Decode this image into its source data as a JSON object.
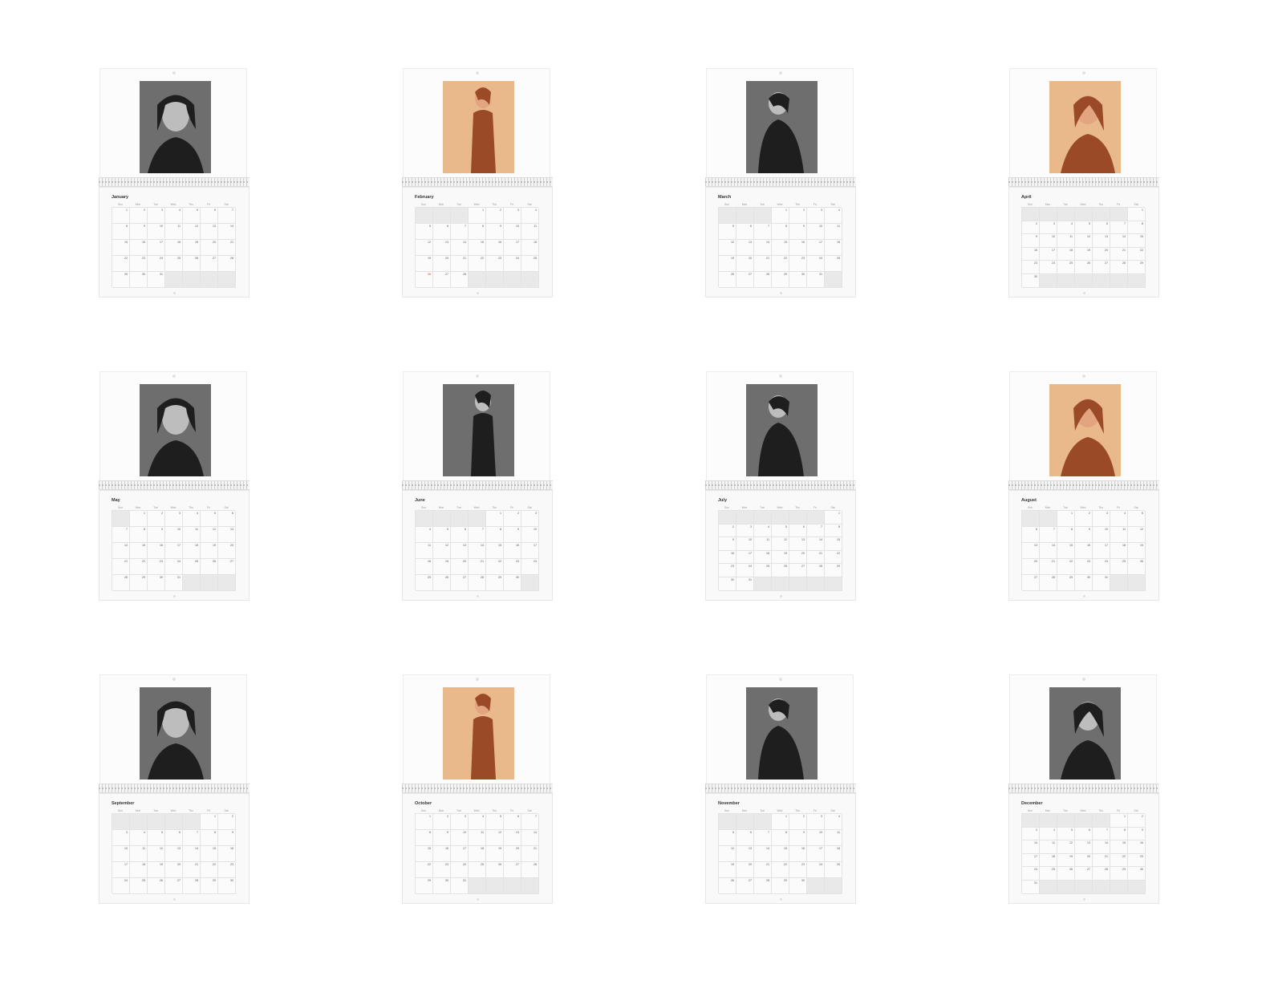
{
  "months": [
    {
      "name": "January",
      "start": 0,
      "days": 31,
      "photo": "bw",
      "red": []
    },
    {
      "name": "February",
      "start": 3,
      "days": 28,
      "photo": "warm",
      "red": [
        26
      ]
    },
    {
      "name": "March",
      "start": 3,
      "days": 31,
      "photo": "bw",
      "red": []
    },
    {
      "name": "April",
      "start": 6,
      "days": 30,
      "photo": "warm",
      "red": []
    },
    {
      "name": "May",
      "start": 1,
      "days": 31,
      "photo": "bw",
      "red": []
    },
    {
      "name": "June",
      "start": 4,
      "days": 30,
      "photo": "bw",
      "red": []
    },
    {
      "name": "July",
      "start": 6,
      "days": 31,
      "photo": "bw",
      "red": []
    },
    {
      "name": "August",
      "start": 2,
      "days": 31,
      "photo": "warm",
      "red": []
    },
    {
      "name": "September",
      "start": 5,
      "days": 30,
      "photo": "bw",
      "red": []
    },
    {
      "name": "October",
      "start": 0,
      "days": 31,
      "photo": "warm",
      "red": []
    },
    {
      "name": "November",
      "start": 3,
      "days": 30,
      "photo": "bw",
      "red": []
    },
    {
      "name": "December",
      "start": 5,
      "days": 31,
      "photo": "bw",
      "red": []
    }
  ],
  "weekdays": [
    "Sun",
    "Mon",
    "Tue",
    "Wed",
    "Thu",
    "Fri",
    "Sat"
  ],
  "colors": {
    "bw_bg": "#6e6e6e",
    "bw_fig": "#1e1e1e",
    "warm_bg": "#e9b98c",
    "warm_fig": "#9a4a27"
  }
}
